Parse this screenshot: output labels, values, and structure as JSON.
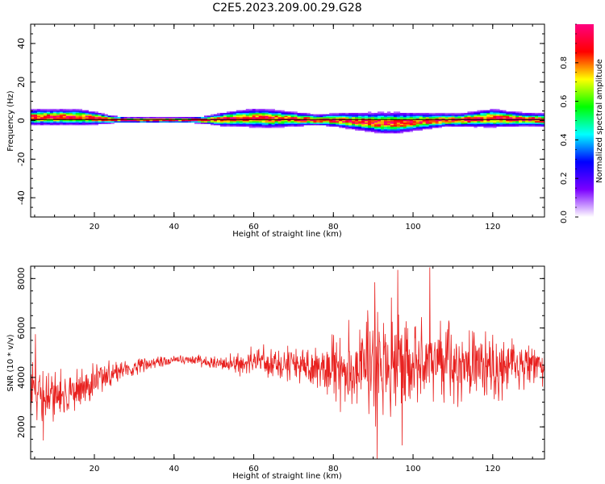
{
  "figure": {
    "title": "C2E5.2023.209.00.29.G28"
  },
  "chart_data": [
    {
      "type": "heatmap",
      "xlabel": "Height of straight line (km)",
      "ylabel": "Frequency (Hz)",
      "xlim": [
        4,
        133
      ],
      "ylim": [
        -50,
        50
      ],
      "x_ticks": [
        20,
        40,
        60,
        80,
        100,
        120
      ],
      "y_ticks": [
        -40,
        -20,
        0,
        20,
        40
      ],
      "y_tick_labels": [
        "-40",
        "-20",
        "0",
        "20",
        "40"
      ],
      "colorbar": {
        "label": "Normalized spectral amplitude",
        "range": [
          0,
          1
        ],
        "ticks": [
          0.0,
          0.2,
          0.4,
          0.6,
          0.8
        ],
        "tick_labels": [
          "0.0",
          "0.2",
          "0.4",
          "0.6",
          "0.8"
        ],
        "colormap": [
          "#ffffff",
          "#7b00ff",
          "#0000ff",
          "#00ffff",
          "#00ff00",
          "#ffff00",
          "#ff0000",
          "#ff0080"
        ]
      },
      "ridge": {
        "x": [
          4,
          8,
          12,
          16,
          20,
          24,
          28,
          32,
          36,
          40,
          44,
          48,
          52,
          56,
          60,
          64,
          68,
          72,
          76,
          80,
          84,
          88,
          92,
          96,
          100,
          104,
          108,
          112,
          116,
          120,
          124,
          128,
          133
        ],
        "center": [
          1.5,
          1.5,
          1.5,
          1.5,
          1.0,
          0.3,
          0,
          0,
          0,
          0,
          0,
          0,
          0.3,
          0.8,
          1.0,
          0.8,
          0.6,
          0.3,
          0,
          0,
          -0.5,
          -1.0,
          -1.5,
          -1.5,
          -1.0,
          -0.5,
          0,
          0,
          0.5,
          1.0,
          0.6,
          0.3,
          0
        ],
        "halfwidth": [
          3,
          3,
          3,
          3,
          2.5,
          1.5,
          1,
          1,
          1,
          1,
          1,
          1.5,
          2.5,
          3,
          3.5,
          3.5,
          3,
          2.5,
          2,
          2.5,
          3,
          3.5,
          4,
          4,
          3.5,
          3,
          2.5,
          2.5,
          3,
          3.5,
          3,
          2.5,
          2.5
        ]
      },
      "reference_line_y": 0.5
    },
    {
      "type": "line",
      "xlabel": "Height of straight line (km)",
      "ylabel": "SNR (10 * v/v)",
      "xlim": [
        4,
        133
      ],
      "ylim": [
        700,
        8500
      ],
      "x_ticks": [
        20,
        40,
        60,
        80,
        100,
        120
      ],
      "y_ticks": [
        2000,
        4000,
        6000,
        8000
      ],
      "color": "#e8201e",
      "envelope": {
        "x": [
          4,
          6,
          8,
          10,
          12,
          14,
          16,
          18,
          20,
          22,
          24,
          26,
          28,
          30,
          32,
          34,
          36,
          38,
          40,
          42,
          44,
          46,
          48,
          50,
          52,
          54,
          56,
          58,
          60,
          62,
          64,
          66,
          68,
          70,
          72,
          74,
          76,
          78,
          80,
          82,
          84,
          86,
          88,
          90,
          92,
          94,
          96,
          98,
          100,
          102,
          104,
          106,
          108,
          110,
          112,
          114,
          116,
          118,
          120,
          122,
          124,
          126,
          128,
          130,
          133
        ],
        "mean": [
          3200,
          3300,
          3300,
          3300,
          3300,
          3400,
          3500,
          3600,
          3800,
          4000,
          4100,
          4200,
          4300,
          4400,
          4500,
          4550,
          4600,
          4650,
          4700,
          4700,
          4700,
          4700,
          4650,
          4600,
          4600,
          4550,
          4550,
          4600,
          4650,
          4650,
          4600,
          4550,
          4500,
          4500,
          4500,
          4450,
          4450,
          4450,
          4500,
          4500,
          4500,
          4550,
          4500,
          4550,
          4600,
          4600,
          4600,
          4600,
          4600,
          4550,
          4550,
          4500,
          4500,
          4500,
          4500,
          4500,
          4500,
          4500,
          4500,
          4450,
          4450,
          4450,
          4450,
          4450,
          4450
        ],
        "range": [
          1500,
          1800,
          1800,
          1800,
          1600,
          1500,
          1400,
          1200,
          1000,
          800,
          700,
          600,
          550,
          500,
          450,
          400,
          350,
          300,
          300,
          300,
          300,
          300,
          350,
          400,
          500,
          600,
          700,
          750,
          800,
          800,
          850,
          900,
          950,
          1000,
          1050,
          1100,
          1150,
          1250,
          1700,
          2100,
          2400,
          2700,
          2900,
          3000,
          3000,
          3000,
          3000,
          2800,
          2600,
          2500,
          2400,
          2300,
          2200,
          2100,
          2000,
          2000,
          1900,
          1900,
          1800,
          1800,
          1700,
          1600,
          1400,
          1200,
          1000
        ]
      },
      "peaks": [
        {
          "x": 91.0,
          "y": 700
        },
        {
          "x": 96.2,
          "y": 8350
        },
        {
          "x": 104.2,
          "y": 8450
        },
        {
          "x": 97.2,
          "y": 1250
        },
        {
          "x": 90.4,
          "y": 7850
        },
        {
          "x": 5.2,
          "y": 5750
        },
        {
          "x": 7.2,
          "y": 1450
        }
      ],
      "n_points": 1300,
      "seed": 20230729
    }
  ]
}
